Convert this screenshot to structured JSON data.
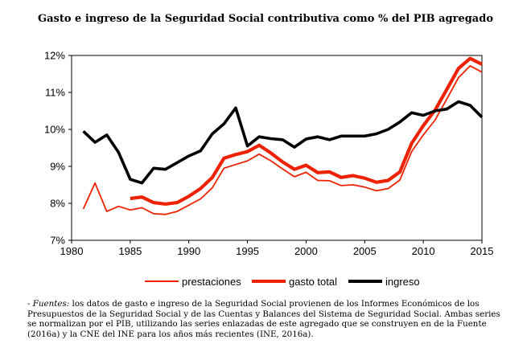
{
  "title": "Gasto e ingreso de la Seguridad Social contributiva como % del PIB agregado",
  "chart_data": {
    "type": "line",
    "title": "Gasto e ingreso de la Seguridad Social contributiva como % del PIB agregado",
    "xlabel": "",
    "ylabel": "",
    "xlim": [
      1980,
      2015
    ],
    "ylim": [
      7,
      12
    ],
    "x_ticks": [
      1980,
      1985,
      1990,
      1995,
      2000,
      2005,
      2010,
      2015
    ],
    "y_ticks": [
      7,
      8,
      9,
      10,
      11,
      12
    ],
    "y_tick_labels": [
      "7%",
      "8%",
      "9%",
      "10%",
      "11%",
      "12%"
    ],
    "x_tick_labels": [
      "1980",
      "1985",
      "1990",
      "1995",
      "2000",
      "2005",
      "2010",
      "2015"
    ],
    "grid": false,
    "legend_position": "bottom",
    "series": [
      {
        "name": "prestaciones",
        "color": "#ee2200",
        "x": [
          1981,
          1982,
          1983,
          1984,
          1985,
          1986,
          1987,
          1988,
          1989,
          1990,
          1991,
          1992,
          1993,
          1994,
          1995,
          1996,
          1997,
          1998,
          1999,
          2000,
          2001,
          2002,
          2003,
          2004,
          2005,
          2006,
          2007,
          2008,
          2009,
          2010,
          2011,
          2012,
          2013,
          2014,
          2015
        ],
        "values": [
          7.85,
          8.55,
          7.78,
          7.92,
          7.82,
          7.88,
          7.72,
          7.7,
          7.78,
          7.95,
          8.12,
          8.42,
          8.95,
          9.05,
          9.15,
          9.33,
          9.15,
          8.93,
          8.72,
          8.84,
          8.62,
          8.61,
          8.48,
          8.5,
          8.44,
          8.34,
          8.4,
          8.63,
          9.4,
          9.85,
          10.25,
          10.82,
          11.4,
          11.72,
          11.55
        ]
      },
      {
        "name": "gasto total",
        "color": "#ee2200",
        "x": [
          1985,
          1986,
          1987,
          1988,
          1989,
          1990,
          1991,
          1992,
          1993,
          1994,
          1995,
          1996,
          1997,
          1998,
          1999,
          2000,
          2001,
          2002,
          2003,
          2004,
          2005,
          2006,
          2007,
          2008,
          2009,
          2010,
          2011,
          2012,
          2013,
          2014,
          2015
        ],
        "values": [
          8.13,
          8.17,
          8.02,
          7.98,
          8.02,
          8.19,
          8.4,
          8.7,
          9.22,
          9.32,
          9.4,
          9.57,
          9.36,
          9.12,
          8.92,
          9.03,
          8.83,
          8.85,
          8.7,
          8.75,
          8.68,
          8.57,
          8.62,
          8.85,
          9.62,
          10.1,
          10.52,
          11.08,
          11.65,
          11.92,
          11.76
        ]
      },
      {
        "name": "ingreso",
        "color": "#000000",
        "x": [
          1981,
          1982,
          1983,
          1984,
          1985,
          1986,
          1987,
          1988,
          1989,
          1990,
          1991,
          1992,
          1993,
          1994,
          1995,
          1996,
          1997,
          1998,
          1999,
          2000,
          2001,
          2002,
          2003,
          2004,
          2005,
          2006,
          2007,
          2008,
          2009,
          2010,
          2011,
          2012,
          2013,
          2014,
          2015
        ],
        "values": [
          9.95,
          9.65,
          9.85,
          9.38,
          8.65,
          8.55,
          8.95,
          8.92,
          9.1,
          9.28,
          9.42,
          9.88,
          10.15,
          10.58,
          9.55,
          9.8,
          9.75,
          9.72,
          9.52,
          9.74,
          9.8,
          9.72,
          9.82,
          9.82,
          9.82,
          9.88,
          10.0,
          10.2,
          10.45,
          10.38,
          10.5,
          10.55,
          10.75,
          10.65,
          10.33
        ]
      }
    ]
  },
  "legend": [
    {
      "label": "prestaciones",
      "color": "#ee2200",
      "style": "thin"
    },
    {
      "label": "gasto total",
      "color": "#ee2200",
      "style": "thick"
    },
    {
      "label": "ingreso",
      "color": "#000000",
      "style": "thick"
    }
  ],
  "note": {
    "lead": "- Fuentes:",
    "text": " los datos de gasto e ingreso de la Seguridad Social provienen de los Informes Económicos de los Presupuestos de la Seguridad Social y de las Cuentas y Balances del Sistema de Seguridad Social. Ambas series se normalizan por el PIB, utilizando las series enlazadas de este agregado que se construyen en de la Fuente (2016a) y la CNE del INE para los años más recientes (INE, 2016a)."
  }
}
